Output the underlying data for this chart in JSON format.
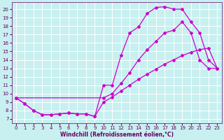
{
  "xlabel": "Windchill (Refroidissement éolien,°C)",
  "bg_color": "#c8f0f0",
  "line_color": "#cc00cc",
  "grid_color": "#ffffff",
  "xlim": [
    -0.5,
    23.5
  ],
  "ylim": [
    6.5,
    20.8
  ],
  "yticks": [
    7,
    8,
    9,
    10,
    11,
    12,
    13,
    14,
    15,
    16,
    17,
    18,
    19,
    20
  ],
  "xticks": [
    0,
    1,
    2,
    3,
    4,
    5,
    6,
    7,
    8,
    9,
    10,
    11,
    12,
    13,
    14,
    15,
    16,
    17,
    18,
    19,
    20,
    21,
    22,
    23
  ],
  "curve1_x": [
    0,
    1,
    2,
    3,
    4,
    5,
    6,
    7,
    8,
    9,
    10,
    11,
    12,
    13,
    14,
    15,
    16,
    17,
    18,
    19,
    20,
    21,
    22,
    23
  ],
  "curve1_y": [
    9.5,
    8.8,
    8.0,
    7.5,
    7.5,
    7.6,
    7.7,
    7.6,
    7.6,
    7.3,
    11.0,
    11.0,
    14.5,
    17.2,
    17.9,
    19.5,
    20.2,
    20.3,
    20.0,
    20.0,
    18.5,
    17.2,
    14.0,
    13.0
  ],
  "curve2_x": [
    0,
    10,
    11,
    12,
    13,
    14,
    15,
    16,
    17,
    18,
    19,
    20,
    21,
    22,
    23
  ],
  "curve2_y": [
    9.5,
    9.5,
    10.0,
    11.2,
    12.5,
    14.0,
    15.2,
    16.2,
    17.2,
    17.5,
    18.5,
    17.2,
    14.0,
    13.0,
    13.0
  ],
  "curve3_x": [
    0,
    1,
    2,
    3,
    4,
    5,
    6,
    7,
    8,
    9,
    10,
    11,
    12,
    13,
    14,
    15,
    16,
    17,
    18,
    19,
    20,
    21,
    22,
    23
  ],
  "curve3_y": [
    9.5,
    8.8,
    8.0,
    7.5,
    7.5,
    7.6,
    7.7,
    7.6,
    7.6,
    7.3,
    9.0,
    9.6,
    10.3,
    11.0,
    11.7,
    12.3,
    12.9,
    13.5,
    14.0,
    14.5,
    14.9,
    15.2,
    15.4,
    13.0
  ],
  "xlabel_color": "#660066",
  "tick_color": "#660066",
  "tick_fontsize": 5.0,
  "xlabel_fontsize": 5.5,
  "lw": 0.9,
  "ms": 2.0
}
